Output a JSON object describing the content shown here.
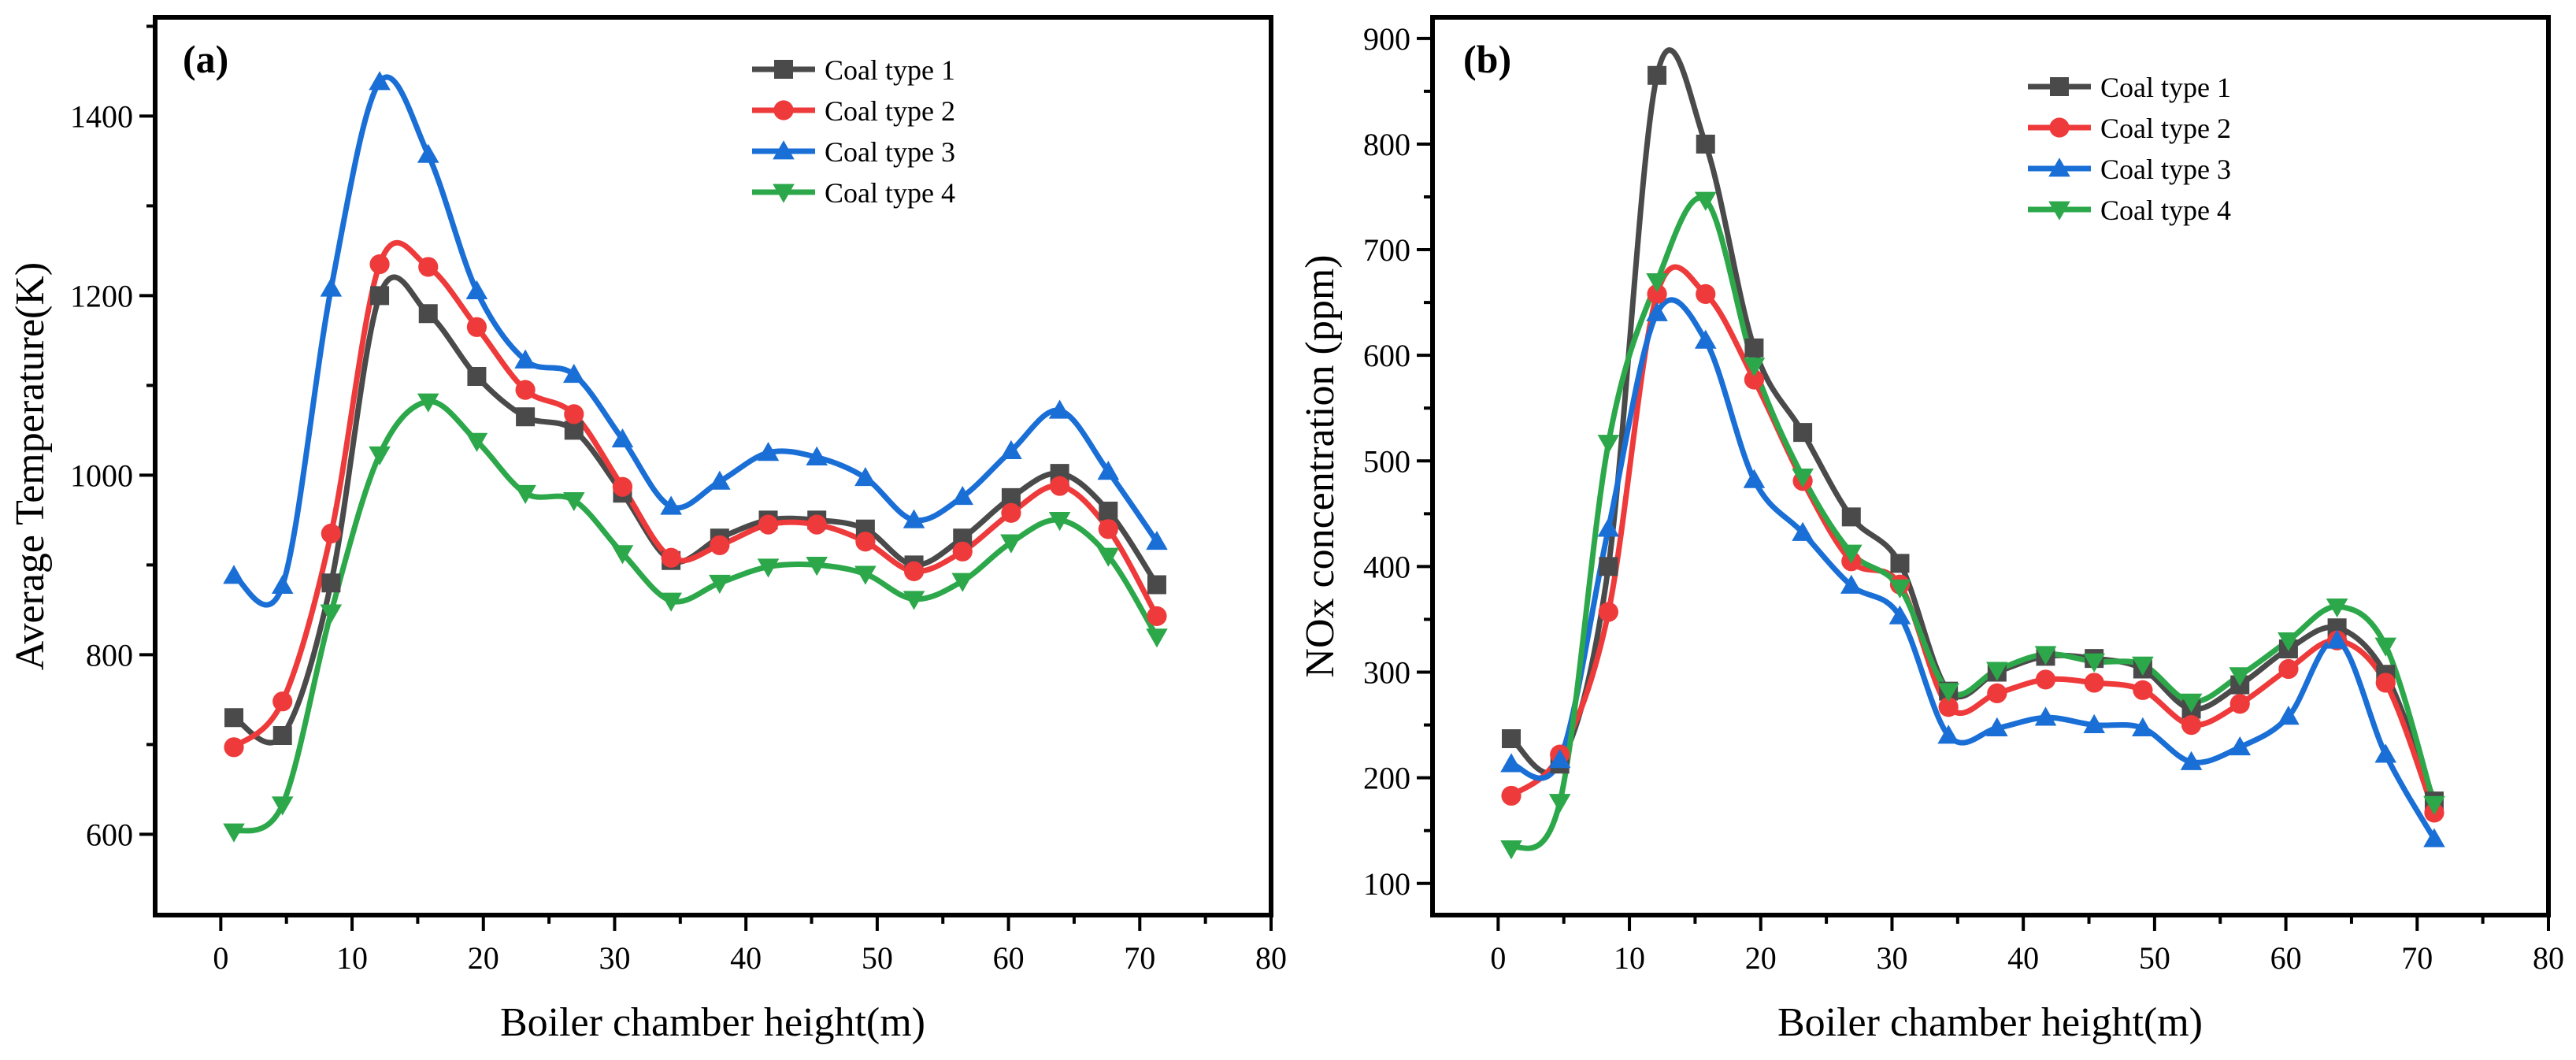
{
  "chart_data": [
    {
      "type": "line",
      "panel_label": "(a)",
      "title": "",
      "xlabel": "Boiler chamber height(m)",
      "ylabel": "Average Temperature(K)",
      "xlim": [
        -5,
        80
      ],
      "ylim": [
        510,
        1510
      ],
      "xticks": [
        0,
        10,
        20,
        30,
        40,
        50,
        60,
        70,
        80
      ],
      "yticks": [
        600,
        800,
        1000,
        1200,
        1400
      ],
      "legend_position": "top-right",
      "x": [
        1,
        4.7,
        8.4,
        12.1,
        15.8,
        19.5,
        23.2,
        26.9,
        30.6,
        34.3,
        38.0,
        41.7,
        45.4,
        49.1,
        52.8,
        56.5,
        60.2,
        63.9,
        67.6,
        71.3
      ],
      "series": [
        {
          "name": "Coal type 1",
          "color": "#4a4a4a",
          "marker": "square",
          "values": [
            730,
            710,
            880,
            1200,
            1180,
            1110,
            1065,
            1050,
            980,
            905,
            930,
            950,
            950,
            940,
            900,
            930,
            975,
            1002,
            960,
            878
          ]
        },
        {
          "name": "Coal type 2",
          "color": "#ee3a3a",
          "marker": "circle",
          "values": [
            697,
            748,
            935,
            1235,
            1232,
            1165,
            1095,
            1068,
            987,
            908,
            922,
            945,
            945,
            926,
            893,
            915,
            958,
            988,
            940,
            843
          ]
        },
        {
          "name": "Coal type 3",
          "color": "#1a6fd6",
          "marker": "triangle-up",
          "values": [
            888,
            877,
            1208,
            1438,
            1357,
            1205,
            1128,
            1112,
            1040,
            965,
            993,
            1025,
            1020,
            997,
            950,
            976,
            1027,
            1072,
            1004,
            926
          ]
        },
        {
          "name": "Coal type 4",
          "color": "#2ca84a",
          "marker": "triangle-down",
          "values": [
            603,
            633,
            847,
            1023,
            1082,
            1038,
            980,
            972,
            913,
            860,
            880,
            898,
            900,
            890,
            862,
            882,
            925,
            950,
            910,
            820
          ]
        }
      ]
    },
    {
      "type": "line",
      "panel_label": "(b)",
      "title": "",
      "xlabel": "Boiler chamber height(m)",
      "ylabel": "NOx concentration (ppm)",
      "xlim": [
        -5,
        80
      ],
      "ylim": [
        70,
        920
      ],
      "xticks": [
        0,
        10,
        20,
        30,
        40,
        50,
        60,
        70,
        80
      ],
      "yticks": [
        100,
        200,
        300,
        400,
        500,
        600,
        700,
        800,
        900
      ],
      "legend_position": "top-right",
      "x": [
        1,
        4.7,
        8.4,
        12.1,
        15.8,
        19.5,
        23.2,
        26.9,
        30.6,
        34.3,
        38.0,
        41.7,
        45.4,
        49.1,
        52.8,
        56.5,
        60.2,
        63.9,
        67.6,
        71.3
      ],
      "series": [
        {
          "name": "Coal type 1",
          "color": "#4a4a4a",
          "marker": "square",
          "values": [
            237,
            213,
            400,
            865,
            800,
            607,
            527,
            447,
            403,
            282,
            300,
            315,
            313,
            303,
            265,
            288,
            322,
            342,
            298,
            178
          ]
        },
        {
          "name": "Coal type 2",
          "color": "#ee3a3a",
          "marker": "circle",
          "values": [
            183,
            222,
            357,
            658,
            658,
            577,
            481,
            405,
            383,
            267,
            280,
            293,
            290,
            283,
            250,
            270,
            303,
            330,
            290,
            167
          ]
        },
        {
          "name": "Coal type 3",
          "color": "#1a6fd6",
          "marker": "triangle-up",
          "values": [
            213,
            217,
            436,
            640,
            614,
            482,
            432,
            382,
            353,
            240,
            247,
            257,
            250,
            247,
            215,
            229,
            258,
            330,
            222,
            142
          ]
        },
        {
          "name": "Coal type 4",
          "color": "#2ca84a",
          "marker": "triangle-down",
          "values": [
            133,
            177,
            517,
            670,
            747,
            590,
            485,
            413,
            380,
            282,
            302,
            317,
            310,
            307,
            272,
            297,
            330,
            362,
            325,
            175
          ]
        }
      ]
    }
  ]
}
